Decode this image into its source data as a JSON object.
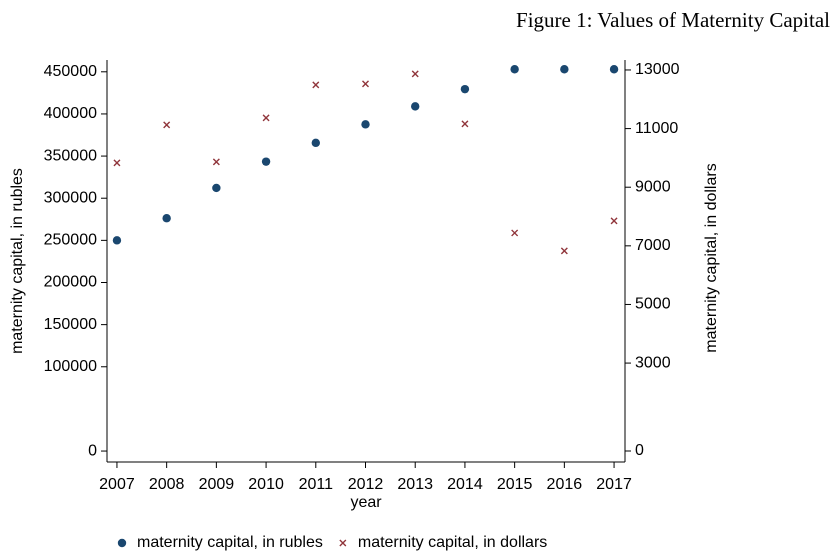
{
  "chart_data": {
    "type": "scatter",
    "title": "Figure 1: Values of Maternity Capital",
    "x_label": "year",
    "y_label": "maternity capital, in rubles",
    "y2_label": "maternity capital, in dollars",
    "x": [
      2007,
      2008,
      2009,
      2010,
      2011,
      2012,
      2013,
      2014,
      2015,
      2016,
      2017
    ],
    "xlim": [
      2006.8,
      2017.22
    ],
    "xticks": [
      2007,
      2008,
      2009,
      2010,
      2011,
      2012,
      2013,
      2014,
      2015,
      2016,
      2017
    ],
    "ylim": [
      -13000,
      464000
    ],
    "yticks": [
      0,
      100000,
      150000,
      200000,
      250000,
      300000,
      350000,
      400000,
      450000
    ],
    "y2lim": [
      -375,
      13340
    ],
    "y2ticks": [
      0,
      3000,
      5000,
      7000,
      9000,
      11000,
      13000
    ],
    "series": [
      {
        "name": "maternity capital, in rubles",
        "color": "#1a476f",
        "marker": "circle",
        "values": [
          250000,
          276250,
          312162,
          343378,
          365698,
          387640,
          408960,
          429408,
          453026,
          453026,
          453026
        ]
      },
      {
        "name": "maternity capital, in dollars",
        "color": "#90353b",
        "marker": "x",
        "axis": "y2",
        "values": [
          9829,
          11126,
          9863,
          11365,
          12491,
          12525,
          12867,
          11160,
          7440,
          6826,
          7850
        ]
      }
    ]
  }
}
